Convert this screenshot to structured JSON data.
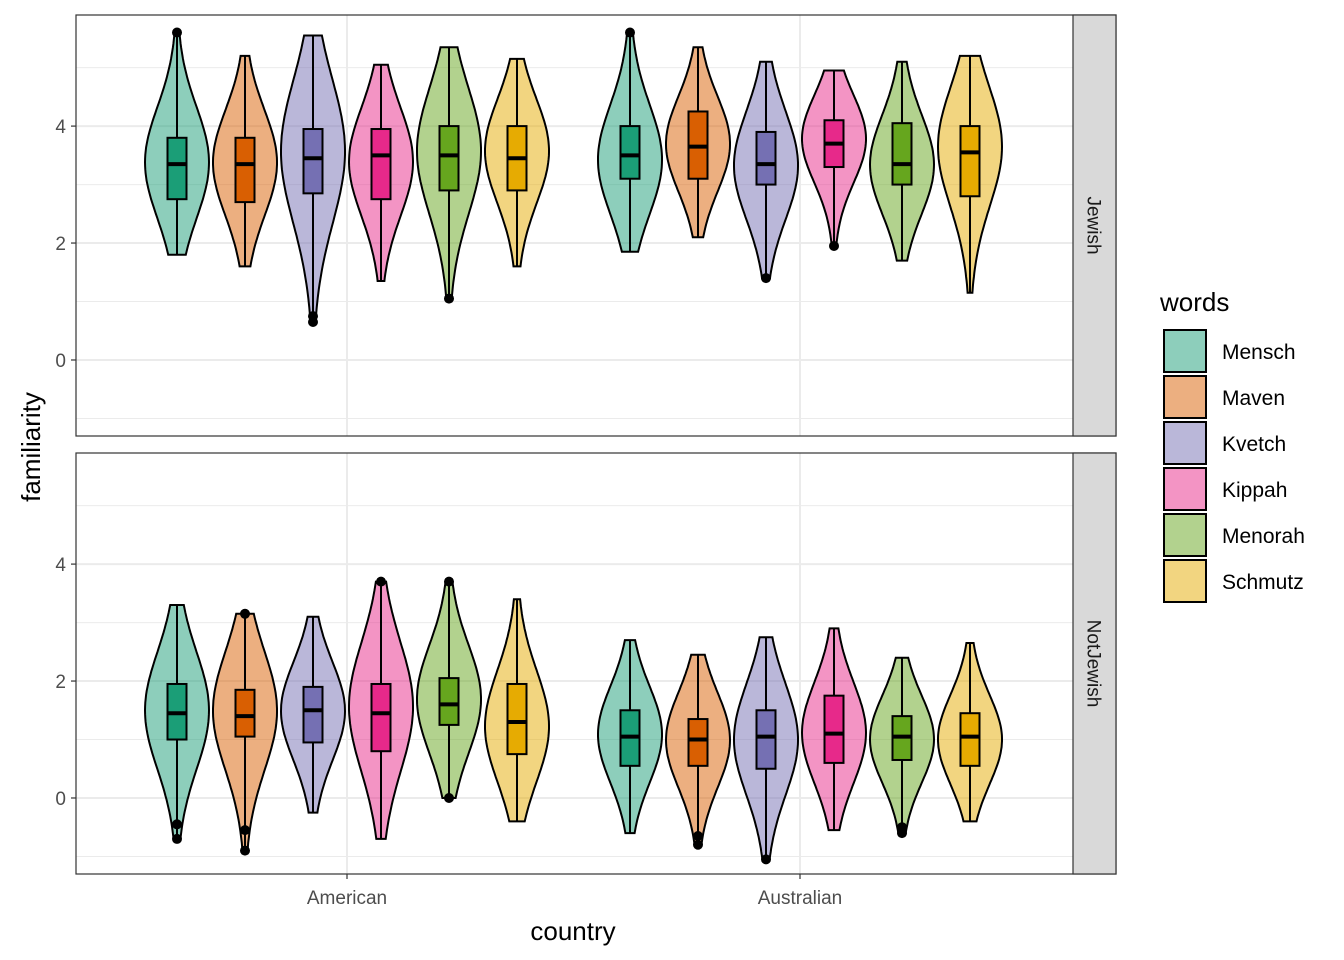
{
  "chart_data": {
    "type": "violin",
    "xlabel": "country",
    "ylabel": "familiarity",
    "categories": [
      "American",
      "Australian"
    ],
    "facets": [
      "Jewish",
      "NotJewish"
    ],
    "ylim": [
      -1.3,
      5.9
    ],
    "yticks": [
      0,
      2,
      4
    ],
    "grid": true,
    "legend": {
      "title": "words",
      "position": "right",
      "items": [
        {
          "name": "Mensch",
          "fill": "#1b9e77"
        },
        {
          "name": "Maven",
          "fill": "#d95f02"
        },
        {
          "name": "Kvetch",
          "fill": "#7570b3"
        },
        {
          "name": "Kippah",
          "fill": "#e7298a"
        },
        {
          "name": "Menorah",
          "fill": "#66a61e"
        },
        {
          "name": "Schmutz",
          "fill": "#e6ab02"
        }
      ]
    },
    "panels": [
      {
        "facet": "Jewish",
        "groups": [
          {
            "country": "American",
            "series": [
              {
                "word": "Mensch",
                "min": 1.8,
                "q1": 2.75,
                "median": 3.35,
                "q3": 3.8,
                "max": 5.6,
                "mode": 3.4,
                "outliers": [
                  5.6
                ]
              },
              {
                "word": "Maven",
                "min": 1.6,
                "q1": 2.7,
                "median": 3.35,
                "q3": 3.8,
                "max": 5.2,
                "mode": 3.4,
                "outliers": []
              },
              {
                "word": "Kvetch",
                "min": 0.65,
                "q1": 2.85,
                "median": 3.45,
                "q3": 3.95,
                "max": 5.55,
                "mode": 3.6,
                "outliers": [
                  0.75,
                  0.65
                ]
              },
              {
                "word": "Kippah",
                "min": 1.35,
                "q1": 2.75,
                "median": 3.5,
                "q3": 3.95,
                "max": 5.05,
                "mode": 3.4,
                "outliers": []
              },
              {
                "word": "Menorah",
                "min": 1.05,
                "q1": 2.9,
                "median": 3.5,
                "q3": 4.0,
                "max": 5.35,
                "mode": 3.6,
                "outliers": [
                  1.05
                ]
              },
              {
                "word": "Schmutz",
                "min": 1.6,
                "q1": 2.9,
                "median": 3.45,
                "q3": 4.0,
                "max": 5.15,
                "mode": 3.6,
                "outliers": []
              }
            ]
          },
          {
            "country": "Australian",
            "series": [
              {
                "word": "Mensch",
                "min": 1.85,
                "q1": 3.1,
                "median": 3.5,
                "q3": 4.0,
                "max": 5.6,
                "mode": 3.4,
                "outliers": [
                  5.6
                ]
              },
              {
                "word": "Maven",
                "min": 2.1,
                "q1": 3.1,
                "median": 3.65,
                "q3": 4.25,
                "max": 5.35,
                "mode": 3.7,
                "outliers": []
              },
              {
                "word": "Kvetch",
                "min": 1.4,
                "q1": 3.0,
                "median": 3.35,
                "q3": 3.9,
                "max": 5.1,
                "mode": 3.3,
                "outliers": [
                  1.4
                ]
              },
              {
                "word": "Kippah",
                "min": 1.95,
                "q1": 3.3,
                "median": 3.7,
                "q3": 4.1,
                "max": 4.95,
                "mode": 3.8,
                "outliers": [
                  1.95
                ]
              },
              {
                "word": "Menorah",
                "min": 1.7,
                "q1": 3.0,
                "median": 3.35,
                "q3": 4.05,
                "max": 5.1,
                "mode": 3.3,
                "outliers": []
              },
              {
                "word": "Schmutz",
                "min": 1.15,
                "q1": 2.8,
                "median": 3.55,
                "q3": 4.0,
                "max": 5.2,
                "mode": 3.7,
                "outliers": []
              }
            ]
          }
        ]
      },
      {
        "facet": "NotJewish",
        "groups": [
          {
            "country": "American",
            "series": [
              {
                "word": "Mensch",
                "min": -0.7,
                "q1": 1.0,
                "median": 1.45,
                "q3": 1.95,
                "max": 3.3,
                "mode": 1.5,
                "outliers": [
                  -0.45,
                  -0.7
                ]
              },
              {
                "word": "Maven",
                "min": -0.9,
                "q1": 1.05,
                "median": 1.4,
                "q3": 1.85,
                "max": 3.15,
                "mode": 1.5,
                "outliers": [
                  3.15,
                  -0.55,
                  -0.9
                ]
              },
              {
                "word": "Kvetch",
                "min": -0.25,
                "q1": 0.95,
                "median": 1.5,
                "q3": 1.9,
                "max": 3.1,
                "mode": 1.5,
                "outliers": []
              },
              {
                "word": "Kippah",
                "min": -0.7,
                "q1": 0.8,
                "median": 1.45,
                "q3": 1.95,
                "max": 3.7,
                "mode": 1.6,
                "outliers": [
                  3.7
                ]
              },
              {
                "word": "Menorah",
                "min": 0.0,
                "q1": 1.25,
                "median": 1.6,
                "q3": 2.05,
                "max": 3.7,
                "mode": 1.7,
                "outliers": [
                  3.7,
                  0.0
                ]
              },
              {
                "word": "Schmutz",
                "min": -0.4,
                "q1": 0.75,
                "median": 1.3,
                "q3": 1.95,
                "max": 3.4,
                "mode": 1.2,
                "outliers": []
              }
            ]
          },
          {
            "country": "Australian",
            "series": [
              {
                "word": "Mensch",
                "min": -0.6,
                "q1": 0.55,
                "median": 1.05,
                "q3": 1.5,
                "max": 2.7,
                "mode": 1.1,
                "outliers": []
              },
              {
                "word": "Maven",
                "min": -0.8,
                "q1": 0.55,
                "median": 1.0,
                "q3": 1.35,
                "max": 2.45,
                "mode": 1.0,
                "outliers": [
                  -0.65,
                  -0.8
                ]
              },
              {
                "word": "Kvetch",
                "min": -1.05,
                "q1": 0.5,
                "median": 1.05,
                "q3": 1.5,
                "max": 2.75,
                "mode": 1.0,
                "outliers": [
                  -1.05
                ]
              },
              {
                "word": "Kippah",
                "min": -0.55,
                "q1": 0.6,
                "median": 1.1,
                "q3": 1.75,
                "max": 2.9,
                "mode": 1.1,
                "outliers": []
              },
              {
                "word": "Menorah",
                "min": -0.6,
                "q1": 0.65,
                "median": 1.05,
                "q3": 1.4,
                "max": 2.4,
                "mode": 1.0,
                "outliers": [
                  -0.5,
                  -0.6
                ]
              },
              {
                "word": "Schmutz",
                "min": -0.4,
                "q1": 0.55,
                "median": 1.05,
                "q3": 1.45,
                "max": 2.65,
                "mode": 1.0,
                "outliers": []
              }
            ]
          }
        ]
      }
    ]
  }
}
